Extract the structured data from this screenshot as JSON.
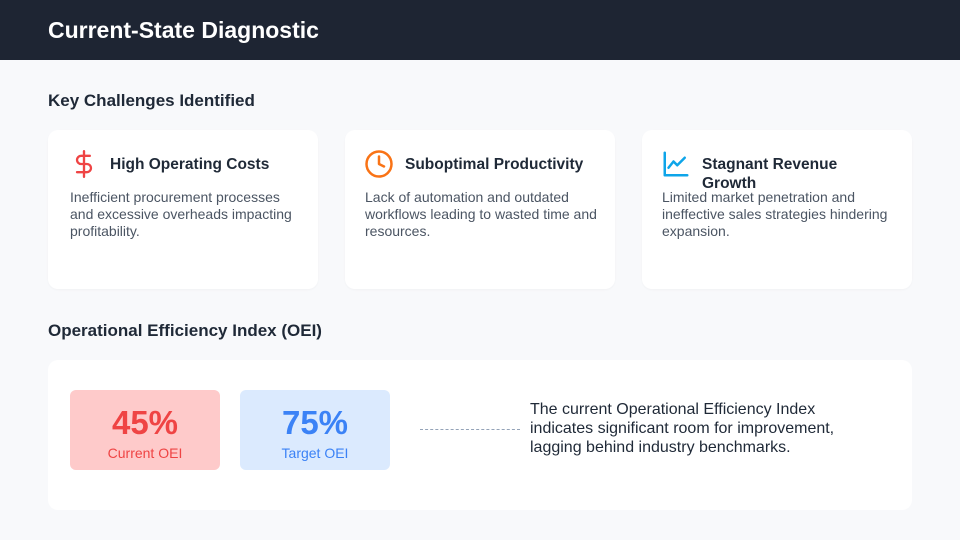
{
  "header": {
    "title": "Current-State Diagnostic"
  },
  "challenges": {
    "title": "Key Challenges Identified",
    "cards": [
      {
        "title": "High Operating Costs",
        "description": "Inefficient procurement processes and excessive overheads impacting profitability."
      },
      {
        "title": "Suboptimal Productivity",
        "description": "Lack of automation and outdated workflows leading to wasted time and resources."
      },
      {
        "title": "Stagnant Revenue Growth",
        "description": "Limited market penetration and ineffective sales strategies hindering expansion."
      }
    ]
  },
  "oei": {
    "title": "Operational Efficiency Index (OEI)",
    "current": {
      "value": "45%",
      "label": "Current OEI"
    },
    "target": {
      "value": "75%",
      "label": "Target OEI"
    },
    "note": "The current Operational Efficiency Index indicates significant room for improvement, lagging behind industry benchmarks."
  }
}
